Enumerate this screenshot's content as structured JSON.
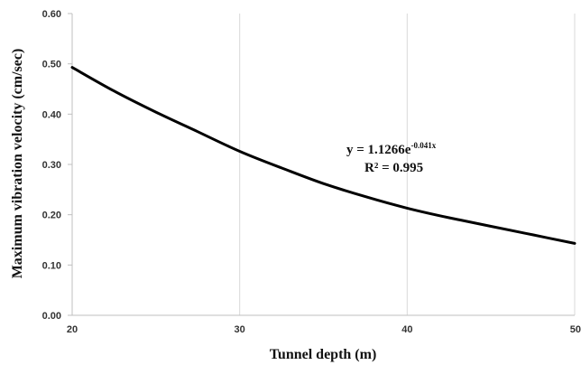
{
  "chart_data": {
    "type": "line",
    "xlabel": "Tunnel depth (m)",
    "ylabel": "Maximum vibration velocity (cm/sec)",
    "xlim": [
      20,
      50
    ],
    "ylim": [
      0,
      0.6
    ],
    "x_ticks": [
      "20",
      "30",
      "40",
      "50"
    ],
    "y_ticks": [
      "0.00",
      "0.10",
      "0.20",
      "0.30",
      "0.40",
      "0.50",
      "0.60"
    ],
    "grid": "vertical",
    "series": [
      {
        "color": "#000000",
        "x": [
          20,
          22.5,
          25,
          27.5,
          30,
          32.5,
          35,
          37.5,
          40,
          42.5,
          45,
          47.5,
          50
        ],
        "y": [
          0.493,
          0.446,
          0.404,
          0.365,
          0.326,
          0.293,
          0.262,
          0.236,
          0.213,
          0.194,
          0.177,
          0.16,
          0.143
        ]
      }
    ],
    "annotation": {
      "equation_base": "y = 1.1266e",
      "equation_exponent": "-0.041x",
      "r_squared": "R² = 0.995"
    }
  }
}
